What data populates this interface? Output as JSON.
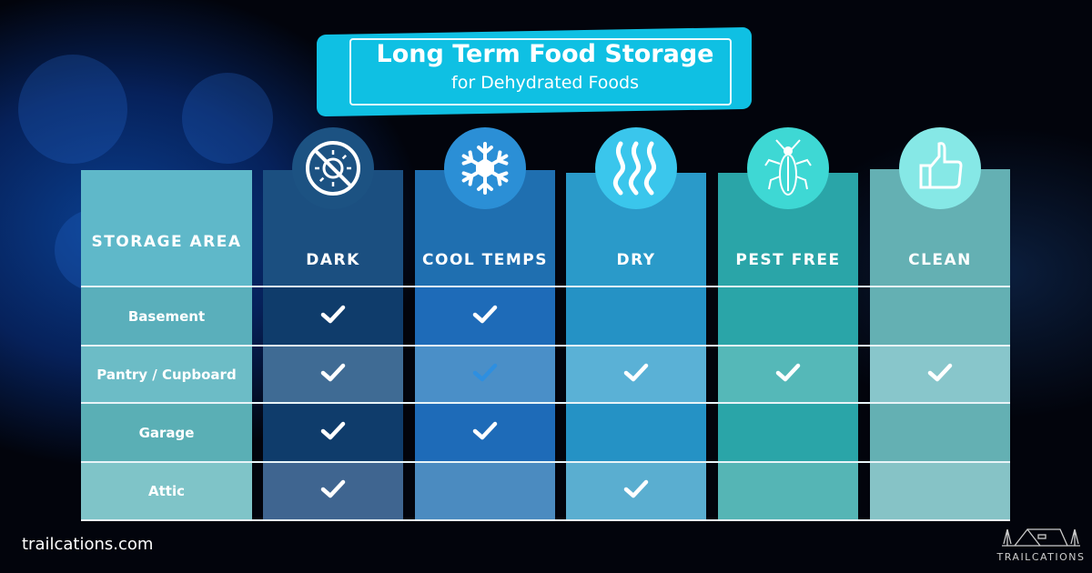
{
  "header": {
    "title": "Long Term Food Storage",
    "subtitle": "for Dehydrated Foods"
  },
  "label_header": "STORAGE AREA",
  "columns": [
    {
      "label": "DARK",
      "icon": "no-sun-icon",
      "icon_color": "#1c5282",
      "colors": [
        "#1b4f80",
        "#0f3c6b",
        "#3f6b94",
        "#0f3c6b",
        "#3f6590"
      ]
    },
    {
      "label": "COOL TEMPS",
      "icon": "snowflake-icon",
      "icon_color": "#2b8fd6",
      "colors": [
        "#1f6fb0",
        "#1e6bb8",
        "#4a8fc8",
        "#1e6bb8",
        "#4b8bc0"
      ]
    },
    {
      "label": "DRY",
      "icon": "heat-waves-icon",
      "icon_color": "#3ac6ec",
      "colors": [
        "#2a9ac9",
        "#2592c5",
        "#5ab1d6",
        "#2592c5",
        "#5aaed0"
      ]
    },
    {
      "label": "PEST FREE",
      "icon": "bug-icon",
      "icon_color": "#3ed8d4",
      "colors": [
        "#2aa5a8",
        "#2aa5a8",
        "#55b8b8",
        "#2aa5a8",
        "#55b5b5"
      ]
    },
    {
      "label": "CLEAN",
      "icon": "thumbs-up-icon",
      "icon_color": "#86e8e6",
      "colors": [
        "#64b0b3",
        "#64b0b3",
        "#88c6cb",
        "#64b0b3",
        "#86c3c6"
      ]
    }
  ],
  "label_colors": [
    "#5fb8c9",
    "#5aafbb",
    "#6cbcc6",
    "#5aafb5",
    "#7fc4c8"
  ],
  "rows": [
    {
      "label": "Basement",
      "checks": [
        true,
        true,
        false,
        false,
        false
      ]
    },
    {
      "label": "Pantry / Cupboard",
      "checks": [
        true,
        true,
        true,
        true,
        true
      ],
      "check_colors": [
        "#fff",
        "#2e8fe0",
        "#fff",
        "#fff",
        "#fff"
      ]
    },
    {
      "label": "Garage",
      "checks": [
        true,
        true,
        false,
        false,
        false
      ]
    },
    {
      "label": "Attic",
      "checks": [
        true,
        false,
        true,
        false,
        false
      ]
    }
  ],
  "footer": {
    "site": "trailcations.com",
    "logo": "TRAILCATIONS"
  }
}
